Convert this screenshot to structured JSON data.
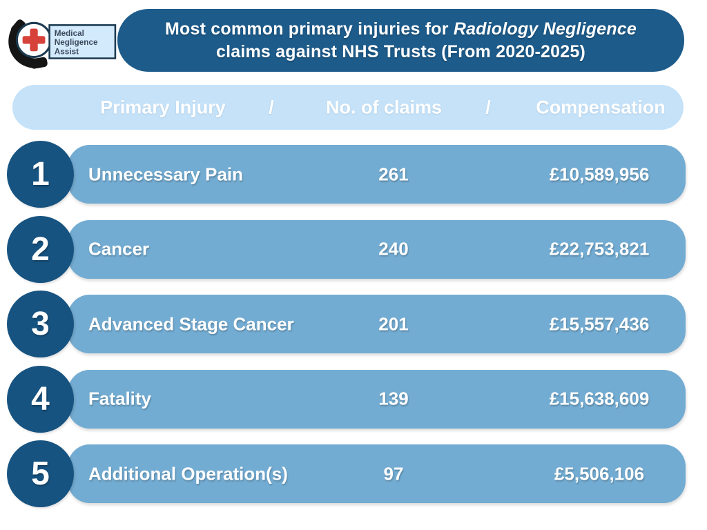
{
  "logo": {
    "name": "Medical Negligence Assist",
    "lines": [
      "Medical",
      "Negligence",
      "Assist"
    ]
  },
  "title": {
    "line1_regular": "Most common primary injuries for ",
    "line1_italic": "Radiology Negligence",
    "line2": "claims against NHS Trusts (From 2020-2025)"
  },
  "header": {
    "primary_injury": "Primary Injury",
    "separator1": "/",
    "no_of_claims": "No. of claims",
    "separator2": "/",
    "compensation": "Compensation"
  },
  "rows": [
    {
      "rank": "1",
      "injury": "Unnecessary Pain",
      "claims": "261",
      "compensation": "£10,589,956"
    },
    {
      "rank": "2",
      "injury": "Cancer",
      "claims": "240",
      "compensation": "£22,753,821"
    },
    {
      "rank": "3",
      "injury": "Advanced Stage Cancer",
      "claims": "201",
      "compensation": "£15,557,436"
    },
    {
      "rank": "4",
      "injury": "Fatality",
      "claims": "139",
      "compensation": "£15,638,609"
    },
    {
      "rank": "5",
      "injury": "Additional Operation(s)",
      "claims": "97",
      "compensation": "£5,506,106"
    }
  ],
  "colors": {
    "banner_bg": "#1d5b8a",
    "header_band_bg": "#c5e2f9",
    "row_bar_bg": "#73acd2",
    "rank_circle_bg": "#175380",
    "text_light": "#ffffff",
    "logo_cross_red": "#d6423a",
    "logo_box_bg": "#d3eafc",
    "logo_border_navy": "#1c3a50",
    "logo_text": "#3a4a5c",
    "logo_handset_black": "#151515"
  },
  "chart_data": {
    "type": "table",
    "title": "Most common primary injuries for Radiology Negligence claims against NHS Trusts (From 2020-2025)",
    "columns": [
      "Primary Injury",
      "No. of claims",
      "Compensation"
    ],
    "rows": [
      [
        "Unnecessary Pain",
        261,
        "£10,589,956"
      ],
      [
        "Cancer",
        240,
        "£22,753,821"
      ],
      [
        "Advanced Stage Cancer",
        201,
        "£15,557,436"
      ],
      [
        "Fatality",
        139,
        "£15,638,609"
      ],
      [
        "Additional Operation(s)",
        97,
        "£5,506,106"
      ]
    ]
  }
}
